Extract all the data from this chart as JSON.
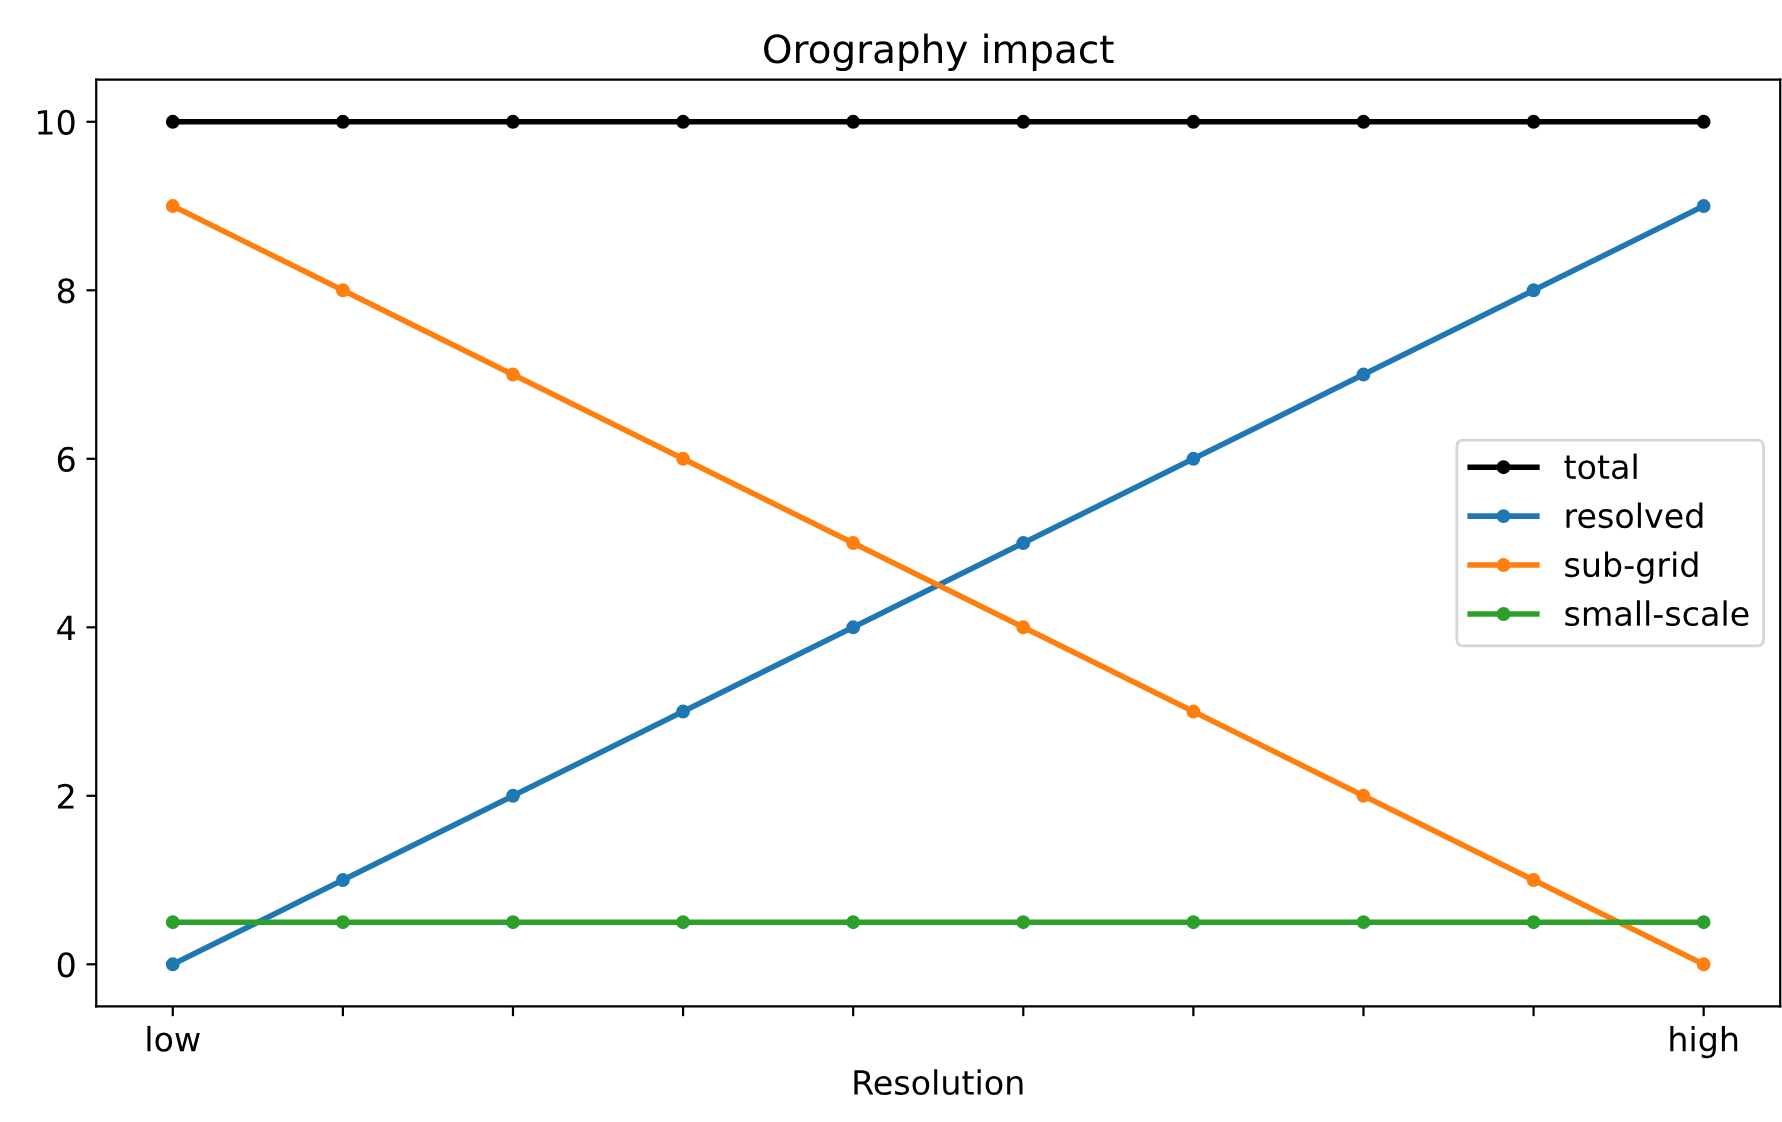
{
  "chart_data": {
    "type": "line",
    "title": "Orography impact",
    "xlabel": "Resolution",
    "categories": [
      "low",
      null,
      null,
      null,
      null,
      null,
      null,
      null,
      null,
      "high"
    ],
    "series": [
      {
        "name": "total",
        "color": "#000000",
        "values": [
          10,
          10,
          10,
          10,
          10,
          10,
          10,
          10,
          10,
          10
        ]
      },
      {
        "name": "resolved",
        "color": "#1f77b4",
        "values": [
          0,
          1,
          2,
          3,
          4,
          5,
          6,
          7,
          8,
          9
        ]
      },
      {
        "name": "sub-grid",
        "color": "#ff7f0e",
        "values": [
          9,
          8,
          7,
          6,
          5,
          4,
          3,
          2,
          1,
          0
        ]
      },
      {
        "name": "small-scale",
        "color": "#2ca02c",
        "values": [
          0.5,
          0.5,
          0.5,
          0.5,
          0.5,
          0.5,
          0.5,
          0.5,
          0.5,
          0.5
        ]
      }
    ],
    "ylim": [
      -0.5,
      10.5
    ],
    "yticks": [
      0,
      2,
      4,
      6,
      8,
      10
    ],
    "grid": false,
    "legend": "right",
    "marker": "circle",
    "line_style": "solid"
  }
}
